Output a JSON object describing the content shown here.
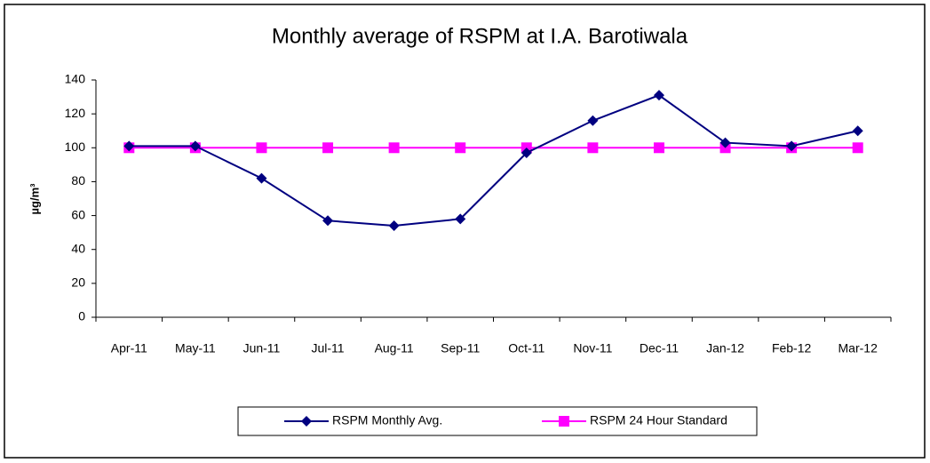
{
  "chart_data": {
    "type": "line",
    "title": "Monthly average of RSPM at I.A. Barotiwala",
    "y_label": "µg/m³",
    "categories": [
      "Apr-11",
      "May-11",
      "Jun-11",
      "Jul-11",
      "Aug-11",
      "Sep-11",
      "Oct-11",
      "Nov-11",
      "Dec-11",
      "Jan-12",
      "Feb-12",
      "Mar-12"
    ],
    "series": [
      {
        "name": "RSPM Monthly Avg.",
        "color": "#000080",
        "marker": "diamond",
        "values": [
          101,
          101,
          82,
          57,
          54,
          58,
          97,
          116,
          131,
          103,
          101,
          110
        ]
      },
      {
        "name": "RSPM 24 Hour Standard",
        "color": "#ff00ff",
        "marker": "square",
        "values": [
          100,
          100,
          100,
          100,
          100,
          100,
          100,
          100,
          100,
          100,
          100,
          100
        ]
      }
    ],
    "ylim": [
      0,
      140
    ],
    "yticks": [
      0,
      20,
      40,
      60,
      80,
      100,
      120,
      140
    ],
    "grid": false,
    "legend": "bottom"
  }
}
